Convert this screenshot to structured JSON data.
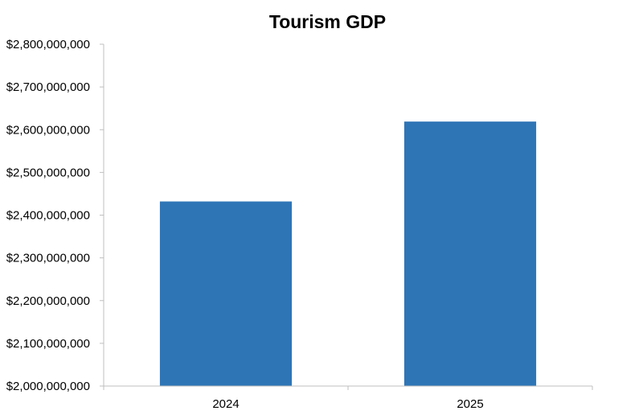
{
  "chart_data": {
    "type": "bar",
    "title": "Tourism GDP",
    "xlabel": "",
    "ylabel": "",
    "categories": [
      "2024",
      "2025"
    ],
    "values": [
      2432000000,
      2619000000
    ],
    "ylim": [
      2000000000,
      2800000000
    ],
    "ytick_step": 100000000,
    "ytick_labels": [
      "$2,000,000,000",
      "$2,100,000,000",
      "$2,200,000,000",
      "$2,300,000,000",
      "$2,400,000,000",
      "$2,500,000,000",
      "$2,600,000,000",
      "$2,700,000,000",
      "$2,800,000,000"
    ],
    "grid": false,
    "legend": "none",
    "bar_color": "#2E75B6",
    "axis_color": "#BFBFBF"
  }
}
